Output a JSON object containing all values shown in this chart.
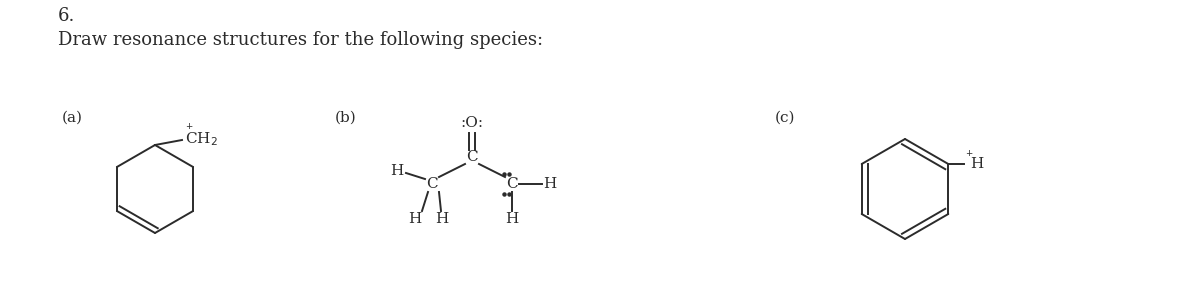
{
  "title_number": "6.",
  "subtitle": "Draw resonance structures for the following species:",
  "bg_color": "#ffffff",
  "text_color": "#2b2b2b",
  "label_a": "(a)",
  "label_b": "(b)",
  "label_c": "(c)",
  "lw": 1.4,
  "font_size_text": 13,
  "font_size_label": 11,
  "font_size_atom": 11
}
